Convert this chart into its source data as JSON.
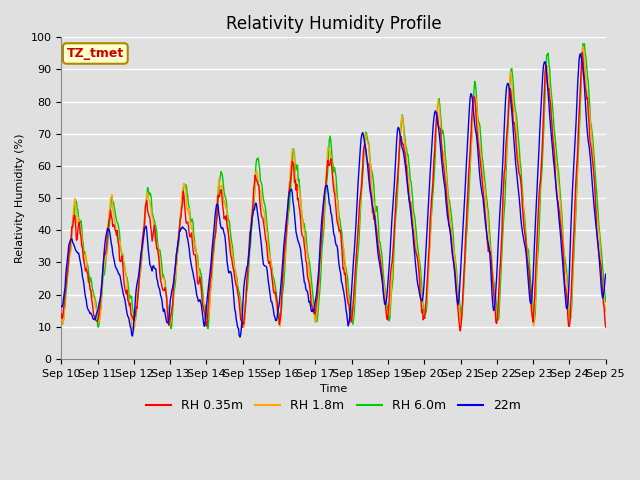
{
  "title": "Relativity Humidity Profile",
  "xlabel": "Time",
  "ylabel": "Relativity Humidity (%)",
  "ylim": [
    0,
    100
  ],
  "annotation_text": "TZ_tmet",
  "annotation_box_color": "#FFFFCC",
  "annotation_text_color": "#CC0000",
  "annotation_border_color": "#AA8800",
  "x_tick_labels": [
    "Sep 10",
    "Sep 11",
    "Sep 12",
    "Sep 13",
    "Sep 14",
    "Sep 15",
    "Sep 16",
    "Sep 17",
    "Sep 18",
    "Sep 19",
    "Sep 20",
    "Sep 21",
    "Sep 22",
    "Sep 23",
    "Sep 24",
    "Sep 25"
  ],
  "line_colors": [
    "#FF0000",
    "#FFA500",
    "#00CC00",
    "#0000EE"
  ],
  "line_labels": [
    "RH 0.35m",
    "RH 1.8m",
    "RH 6.0m",
    "22m"
  ],
  "line_width": 1.0,
  "bg_color": "#E0E0E0",
  "plot_bg_color": "#E0E0E0",
  "grid_color": "#FFFFFF",
  "title_fontsize": 12,
  "legend_fontsize": 9,
  "axis_fontsize": 8
}
